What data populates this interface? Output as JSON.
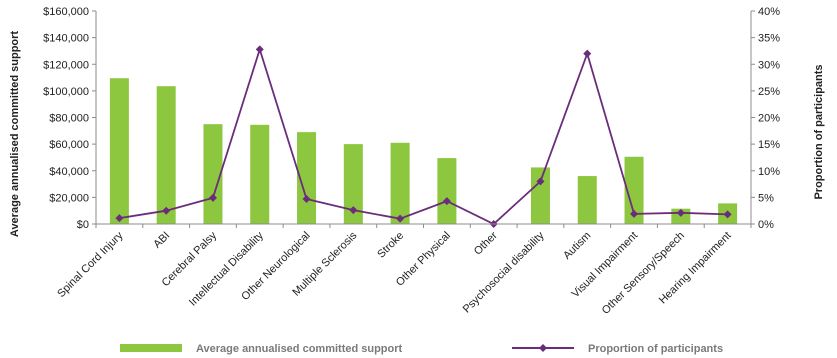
{
  "chart_data": {
    "type": "bar",
    "categories": [
      "Spinal Cord Injury",
      "ABI",
      "Cerebral Palsy",
      "Intellectual Disability",
      "Other Neurological",
      "Multiple Sclerosis",
      "Stroke",
      "Other Physical",
      "Other",
      "Psychosocial disability",
      "Autism",
      "Visual Impairment",
      "Other Sensory/Speech",
      "Hearing Impairment"
    ],
    "series": [
      {
        "name": "Average annualised committed support",
        "type": "bar",
        "axis": "left",
        "color": "#8dc63f",
        "values": [
          109500,
          103500,
          75000,
          74500,
          69000,
          60000,
          61000,
          49500,
          0,
          42500,
          36000,
          50500,
          11500,
          15500
        ]
      },
      {
        "name": "Proportion of participants",
        "type": "line",
        "axis": "right",
        "color": "#6b2d7b",
        "marker": "diamond",
        "values": [
          1.1,
          2.5,
          4.9,
          32.8,
          4.7,
          2.6,
          1.0,
          4.3,
          0.0,
          8.0,
          32.0,
          1.9,
          2.1,
          1.8
        ]
      }
    ],
    "y_left": {
      "label": "Average annualised committed support",
      "range": [
        0,
        160000
      ],
      "ticks": [
        "$0",
        "$20,000",
        "$40,000",
        "$60,000",
        "$80,000",
        "$100,000",
        "$120,000",
        "$140,000",
        "$160,000"
      ]
    },
    "y_right": {
      "label": "Proportion of participants",
      "range": [
        0,
        40
      ],
      "ticks": [
        "0%",
        "5%",
        "10%",
        "15%",
        "20%",
        "25%",
        "30%",
        "35%",
        "40%"
      ]
    },
    "grid": false,
    "legend": "bottom"
  }
}
